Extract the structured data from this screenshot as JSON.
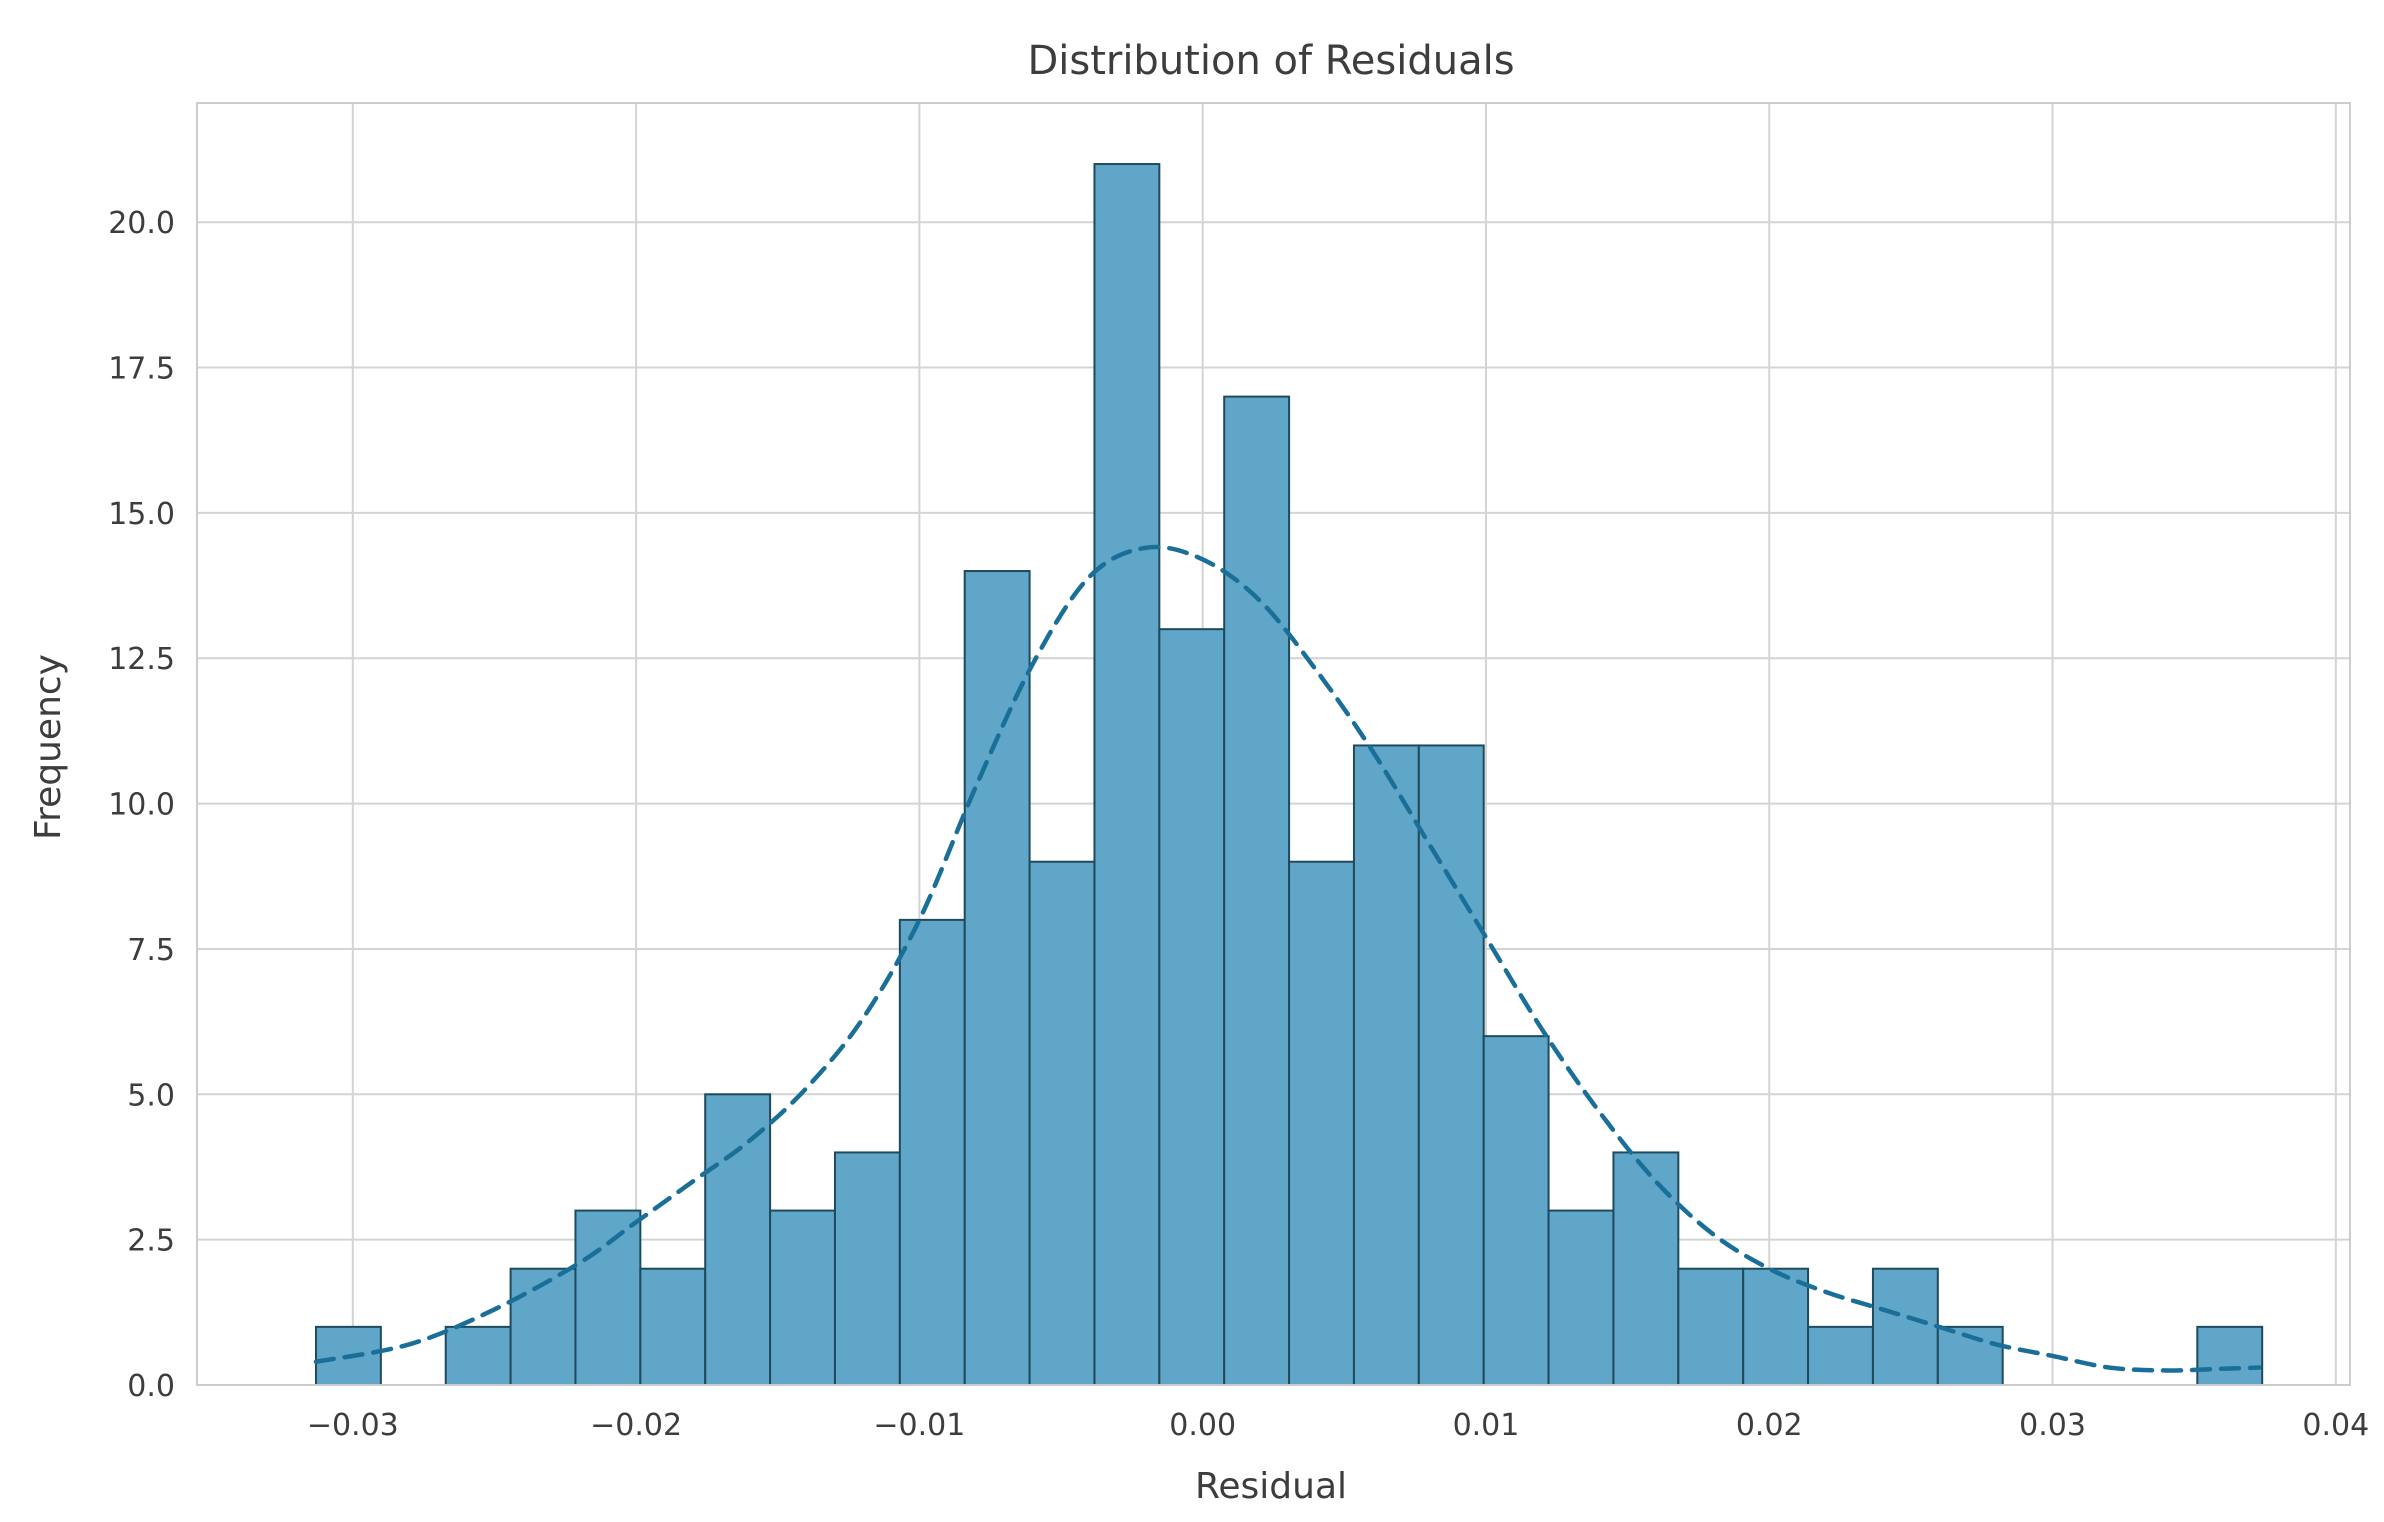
{
  "chart_data": {
    "type": "bar",
    "title": "Distribution of Residuals",
    "xlabel": "Residual",
    "ylabel": "Frequency",
    "xlim": [
      -0.0355,
      0.0405
    ],
    "ylim": [
      0,
      22.05
    ],
    "grid": true,
    "x_ticks": [
      {
        "value": -0.03,
        "label": "−0.03"
      },
      {
        "value": -0.02,
        "label": "−0.02"
      },
      {
        "value": -0.01,
        "label": "−0.01"
      },
      {
        "value": 0.0,
        "label": "0.00"
      },
      {
        "value": 0.01,
        "label": "0.01"
      },
      {
        "value": 0.02,
        "label": "0.02"
      },
      {
        "value": 0.03,
        "label": "0.03"
      },
      {
        "value": 0.04,
        "label": "0.04"
      }
    ],
    "y_ticks": [
      {
        "value": 0.0,
        "label": "0.0"
      },
      {
        "value": 2.5,
        "label": "2.5"
      },
      {
        "value": 5.0,
        "label": "5.0"
      },
      {
        "value": 7.5,
        "label": "7.5"
      },
      {
        "value": 10.0,
        "label": "10.0"
      },
      {
        "value": 12.5,
        "label": "12.5"
      },
      {
        "value": 15.0,
        "label": "15.0"
      },
      {
        "value": 17.5,
        "label": "17.5"
      },
      {
        "value": 20.0,
        "label": "20.0"
      }
    ],
    "bins": {
      "start": -0.0313,
      "width": 0.00229,
      "counts": [
        1,
        0,
        1,
        2,
        3,
        2,
        5,
        3,
        4,
        8,
        14,
        9,
        21,
        13,
        17,
        9,
        11,
        11,
        6,
        3,
        4,
        2,
        2,
        1,
        2,
        1,
        0,
        0,
        0,
        1
      ]
    },
    "kde": {
      "style": "dashed",
      "points": [
        [
          -0.0313,
          0.4
        ],
        [
          -0.028,
          0.7
        ],
        [
          -0.025,
          1.3
        ],
        [
          -0.022,
          2.1
        ],
        [
          -0.02,
          2.8
        ],
        [
          -0.018,
          3.5
        ],
        [
          -0.016,
          4.2
        ],
        [
          -0.014,
          5.1
        ],
        [
          -0.012,
          6.3
        ],
        [
          -0.01,
          8.0
        ],
        [
          -0.008,
          10.3
        ],
        [
          -0.006,
          12.4
        ],
        [
          -0.004,
          13.9
        ],
        [
          -0.002,
          14.4
        ],
        [
          0.0,
          14.2
        ],
        [
          0.002,
          13.5
        ],
        [
          0.004,
          12.3
        ],
        [
          0.006,
          10.9
        ],
        [
          0.008,
          9.3
        ],
        [
          0.01,
          7.7
        ],
        [
          0.012,
          6.1
        ],
        [
          0.014,
          4.7
        ],
        [
          0.016,
          3.5
        ],
        [
          0.018,
          2.6
        ],
        [
          0.02,
          2.0
        ],
        [
          0.022,
          1.6
        ],
        [
          0.024,
          1.3
        ],
        [
          0.026,
          1.0
        ],
        [
          0.028,
          0.7
        ],
        [
          0.03,
          0.5
        ],
        [
          0.032,
          0.3
        ],
        [
          0.034,
          0.25
        ],
        [
          0.036,
          0.28
        ],
        [
          0.0373,
          0.3
        ]
      ]
    },
    "colors": {
      "bar_fill": "#5fa6c9",
      "bar_edge": "#1f4a5c",
      "kde_line": "#1a6f99",
      "grid": "#d4d4d4",
      "frame": "#cccccc",
      "text": "#3d3d3d"
    }
  }
}
